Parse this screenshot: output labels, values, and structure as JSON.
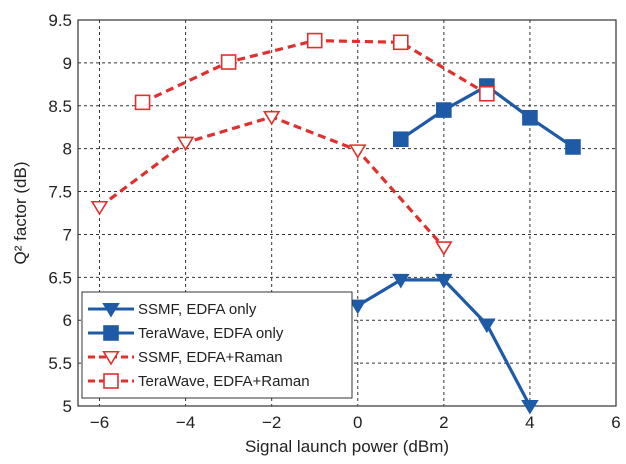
{
  "chart_data": {
    "type": "line",
    "xlabel": "Signal launch power (dBm)",
    "ylabel": "Q² factor (dB)",
    "xlim": [
      -6.5,
      6
    ],
    "ylim": [
      5,
      9.5
    ],
    "xticks": [
      -6,
      -4,
      -2,
      0,
      2,
      4,
      6
    ],
    "yticks": [
      5,
      5.5,
      6,
      6.5,
      7,
      7.5,
      8,
      8.5,
      9,
      9.5
    ],
    "grid": true,
    "legend_position": "bottom-left",
    "series": [
      {
        "name": "SSMF, EDFA only",
        "color": "#1f5aa6",
        "line": "solid",
        "marker": "triangle-down-filled",
        "x": [
          0,
          1,
          2,
          3,
          4
        ],
        "y": [
          6.17,
          6.47,
          6.47,
          5.95,
          5.0
        ]
      },
      {
        "name": "TeraWave, EDFA only",
        "color": "#1f5aa6",
        "line": "solid",
        "marker": "square-filled",
        "x": [
          1,
          2,
          3,
          4,
          5
        ],
        "y": [
          8.11,
          8.45,
          8.73,
          8.36,
          8.02
        ]
      },
      {
        "name": "SSMF, EDFA+Raman",
        "color": "#e0302e",
        "line": "dashed",
        "marker": "triangle-down-open",
        "x": [
          -6,
          -4,
          -2,
          0,
          2
        ],
        "y": [
          7.32,
          8.07,
          8.37,
          7.98,
          6.85
        ]
      },
      {
        "name": "TeraWave, EDFA+Raman",
        "color": "#e0302e",
        "line": "dashed",
        "marker": "square-open",
        "x": [
          -5,
          -3,
          -1,
          1,
          3
        ],
        "y": [
          8.54,
          9.01,
          9.26,
          9.24,
          8.64
        ]
      }
    ]
  }
}
